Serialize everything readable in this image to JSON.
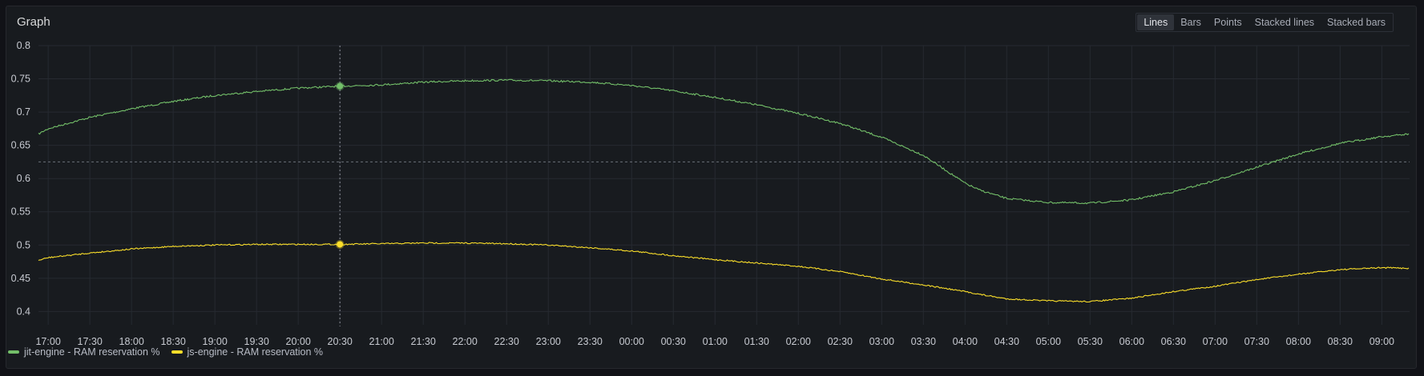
{
  "panel": {
    "title": "Graph",
    "modes": [
      {
        "label": "Lines",
        "active": true
      },
      {
        "label": "Bars",
        "active": false
      },
      {
        "label": "Points",
        "active": false
      },
      {
        "label": "Stacked lines",
        "active": false
      },
      {
        "label": "Stacked bars",
        "active": false
      }
    ]
  },
  "chart_data": {
    "type": "line",
    "title": "Graph",
    "xlabel": "",
    "ylabel": "",
    "ylim": [
      0.38,
      0.8
    ],
    "y_ticks": [
      0.4,
      0.45,
      0.5,
      0.55,
      0.6,
      0.65,
      0.7,
      0.75,
      0.8
    ],
    "y_tick_labels": [
      "0.4",
      "0.45",
      "0.5",
      "0.55",
      "0.6",
      "0.65",
      "0.7",
      "0.75",
      "0.8"
    ],
    "x_tick_labels": [
      "17:00",
      "17:30",
      "18:00",
      "18:30",
      "19:00",
      "19:30",
      "20:00",
      "20:30",
      "21:00",
      "21:30",
      "22:00",
      "22:30",
      "23:00",
      "23:30",
      "00:00",
      "00:30",
      "01:00",
      "01:30",
      "02:00",
      "02:30",
      "03:00",
      "03:30",
      "04:00",
      "04:30",
      "05:00",
      "05:30",
      "06:00",
      "06:30",
      "07:00",
      "07:30",
      "08:00",
      "08:30",
      "09:00"
    ],
    "x_range": [
      "16:53",
      "09:20"
    ],
    "hover_time": "20:30",
    "threshold_y": 0.625,
    "grid": true,
    "legend_position": "bottom-left",
    "x": [
      "16:53",
      "17:00",
      "17:30",
      "18:00",
      "18:30",
      "19:00",
      "19:30",
      "20:00",
      "20:30",
      "21:00",
      "21:30",
      "22:00",
      "22:30",
      "23:00",
      "23:30",
      "00:00",
      "00:30",
      "01:00",
      "01:30",
      "02:00",
      "02:30",
      "03:00",
      "03:30",
      "04:00",
      "04:10",
      "04:30",
      "05:00",
      "05:30",
      "06:00",
      "06:30",
      "07:00",
      "07:30",
      "08:00",
      "08:30",
      "09:00",
      "09:20"
    ],
    "series": [
      {
        "name": "jit-engine - RAM reservation %",
        "color": "#73bf69",
        "values": [
          0.667,
          0.675,
          0.692,
          0.705,
          0.716,
          0.725,
          0.731,
          0.736,
          0.739,
          0.741,
          0.745,
          0.747,
          0.748,
          0.747,
          0.745,
          0.74,
          0.732,
          0.722,
          0.711,
          0.698,
          0.683,
          0.662,
          0.635,
          0.593,
          0.583,
          0.57,
          0.564,
          0.563,
          0.568,
          0.58,
          0.597,
          0.617,
          0.637,
          0.653,
          0.663,
          0.667
        ]
      },
      {
        "name": "js-engine - RAM reservation %",
        "color": "#fade2a",
        "values": [
          0.477,
          0.481,
          0.488,
          0.494,
          0.498,
          0.5,
          0.501,
          0.501,
          0.501,
          0.502,
          0.503,
          0.503,
          0.502,
          0.5,
          0.496,
          0.491,
          0.484,
          0.478,
          0.473,
          0.468,
          0.46,
          0.449,
          0.44,
          0.43,
          0.426,
          0.419,
          0.416,
          0.415,
          0.42,
          0.43,
          0.438,
          0.448,
          0.456,
          0.463,
          0.466,
          0.465
        ]
      }
    ]
  }
}
